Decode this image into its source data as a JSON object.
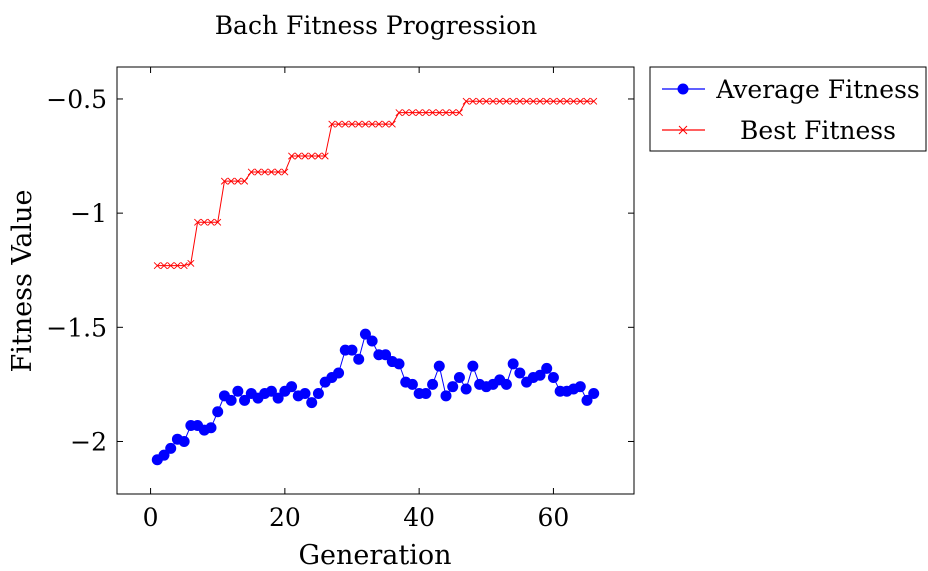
{
  "chart_data": {
    "type": "line",
    "title": "Bach Fitness Progression",
    "xlabel": "Generation",
    "ylabel": "Fitness Value",
    "xlim": [
      -5,
      72
    ],
    "ylim": [
      -2.23,
      -0.36
    ],
    "xticks": [
      0,
      20,
      40,
      60
    ],
    "xtick_labels": [
      "0",
      "20",
      "40",
      "60"
    ],
    "yticks": [
      -2,
      -1.5,
      -1,
      -0.5
    ],
    "ytick_labels": [
      "−2",
      "−1.5",
      "−1",
      "−0.5"
    ],
    "grid": false,
    "legend_position": "outside-right-top",
    "x": [
      1,
      2,
      3,
      4,
      5,
      6,
      7,
      8,
      9,
      10,
      11,
      12,
      13,
      14,
      15,
      16,
      17,
      18,
      19,
      20,
      21,
      22,
      23,
      24,
      25,
      26,
      27,
      28,
      29,
      30,
      31,
      32,
      33,
      34,
      35,
      36,
      37,
      38,
      39,
      40,
      41,
      42,
      43,
      44,
      45,
      46,
      47,
      48,
      49,
      50,
      51,
      52,
      53,
      54,
      55,
      56,
      57,
      58,
      59,
      60,
      61,
      62,
      63,
      64,
      65,
      66
    ],
    "series": [
      {
        "name": "Average Fitness",
        "color": "#0000ff",
        "marker": "circle",
        "values": [
          -2.08,
          -2.06,
          -2.03,
          -1.99,
          -2.0,
          -1.93,
          -1.93,
          -1.95,
          -1.94,
          -1.87,
          -1.8,
          -1.82,
          -1.78,
          -1.82,
          -1.79,
          -1.81,
          -1.79,
          -1.78,
          -1.81,
          -1.78,
          -1.76,
          -1.8,
          -1.79,
          -1.83,
          -1.79,
          -1.74,
          -1.72,
          -1.7,
          -1.6,
          -1.6,
          -1.64,
          -1.53,
          -1.56,
          -1.62,
          -1.62,
          -1.65,
          -1.66,
          -1.74,
          -1.75,
          -1.79,
          -1.79,
          -1.75,
          -1.67,
          -1.8,
          -1.76,
          -1.72,
          -1.77,
          -1.67,
          -1.75,
          -1.76,
          -1.75,
          -1.73,
          -1.75,
          -1.66,
          -1.7,
          -1.74,
          -1.72,
          -1.71,
          -1.68,
          -1.72,
          -1.78,
          -1.78,
          -1.77,
          -1.76,
          -1.82,
          -1.79
        ]
      },
      {
        "name": "Best Fitness",
        "color": "#ff0000",
        "marker": "x",
        "values": [
          -1.23,
          -1.23,
          -1.23,
          -1.23,
          -1.23,
          -1.22,
          -1.04,
          -1.04,
          -1.04,
          -1.04,
          -0.86,
          -0.86,
          -0.86,
          -0.86,
          -0.82,
          -0.82,
          -0.82,
          -0.82,
          -0.82,
          -0.82,
          -0.75,
          -0.75,
          -0.75,
          -0.75,
          -0.75,
          -0.75,
          -0.61,
          -0.61,
          -0.61,
          -0.61,
          -0.61,
          -0.61,
          -0.61,
          -0.61,
          -0.61,
          -0.61,
          -0.56,
          -0.56,
          -0.56,
          -0.56,
          -0.56,
          -0.56,
          -0.56,
          -0.56,
          -0.56,
          -0.56,
          -0.51,
          -0.51,
          -0.51,
          -0.51,
          -0.51,
          -0.51,
          -0.51,
          -0.51,
          -0.51,
          -0.51,
          -0.51,
          -0.51,
          -0.51,
          -0.51,
          -0.51,
          -0.51,
          -0.51,
          -0.51,
          -0.51,
          -0.51
        ]
      }
    ]
  }
}
